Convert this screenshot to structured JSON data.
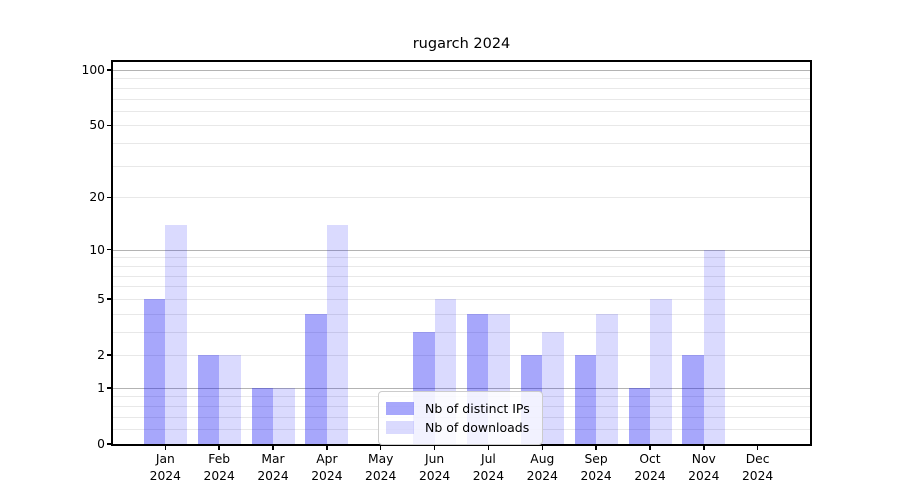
{
  "title": "rugarch 2024",
  "chart_data": {
    "type": "bar",
    "title": "rugarch 2024",
    "categories": [
      "Jan",
      "Feb",
      "Mar",
      "Apr",
      "May",
      "Jun",
      "Jul",
      "Aug",
      "Sep",
      "Oct",
      "Nov",
      "Dec"
    ],
    "year_label": "2024",
    "series": [
      {
        "name": "Nb of distinct IPs",
        "color_rgba": "rgba(10,10,245,0.36)",
        "values": [
          5,
          2,
          1,
          4,
          0,
          3,
          4,
          2,
          2,
          1,
          2,
          0
        ]
      },
      {
        "name": "Nb of downloads",
        "color_rgba": "rgba(10,10,245,0.15)",
        "values": [
          14,
          2,
          1,
          14,
          0,
          5,
          4,
          3,
          4,
          5,
          10,
          0
        ]
      }
    ],
    "yticks": [
      0,
      1,
      2,
      5,
      10,
      20,
      50,
      100
    ],
    "ylim": [
      0,
      100
    ],
    "yscale": "log10(1+y)",
    "grid": {
      "major_values": [
        1,
        10,
        100
      ],
      "minor_values": [
        0.2,
        0.4,
        0.6,
        0.8,
        2,
        3,
        4,
        5,
        6,
        7,
        8,
        9,
        20,
        30,
        40,
        50,
        60,
        70,
        80,
        90
      ],
      "major_color": "#b3b3b3",
      "minor_color": "#e8e8e8"
    },
    "legend_position": "lower center",
    "xlabel": "",
    "ylabel": ""
  }
}
